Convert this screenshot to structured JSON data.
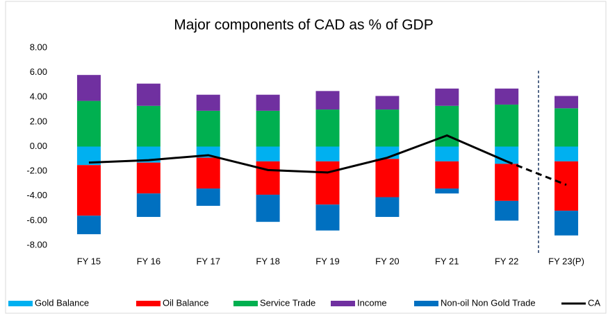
{
  "chart_data": {
    "type": "bar",
    "title": "Major components of CAD as % of GDP",
    "categories": [
      "FY 15",
      "FY 16",
      "FY 17",
      "FY 18",
      "FY 19",
      "FY 20",
      "FY 21",
      "FY 22",
      "FY 23(P)"
    ],
    "series": [
      {
        "name": "Gold Balance",
        "color": "#00b0f0",
        "values": [
          -1.5,
          -1.3,
          -0.9,
          -1.2,
          -1.2,
          -1.0,
          -1.2,
          -1.4,
          -1.2
        ]
      },
      {
        "name": "Oil Balance",
        "color": "#ff0000",
        "values": [
          -4.1,
          -2.5,
          -2.5,
          -2.7,
          -3.5,
          -3.1,
          -2.2,
          -3.0,
          -4.0
        ]
      },
      {
        "name": "Service Trade",
        "color": "#00b050",
        "values": [
          3.7,
          3.3,
          2.9,
          2.9,
          3.0,
          3.0,
          3.3,
          3.4,
          3.1
        ]
      },
      {
        "name": "Income",
        "color": "#7030a0",
        "values": [
          2.1,
          1.8,
          1.3,
          1.3,
          1.5,
          1.1,
          1.4,
          1.3,
          1.0
        ]
      },
      {
        "name": "Non-oil Non Gold Trade",
        "color": "#0070c0",
        "values": [
          -1.5,
          -1.9,
          -1.4,
          -2.2,
          -2.1,
          -1.6,
          -0.4,
          -1.6,
          -2.0
        ]
      },
      {
        "name": "CA",
        "color": "#000000",
        "type": "line",
        "values": [
          -1.3,
          -1.1,
          -0.7,
          -1.9,
          -2.1,
          -0.9,
          0.9,
          -1.2,
          -3.1
        ]
      }
    ],
    "ylim": [
      -8,
      8
    ],
    "yticks": [
      {
        "value": -8,
        "label": "-8.00"
      },
      {
        "value": -6,
        "label": "-6.00"
      },
      {
        "value": -4,
        "label": "-4.00"
      },
      {
        "value": -2,
        "label": "-2.00"
      },
      {
        "value": 0,
        "label": "0.00"
      },
      {
        "value": 2,
        "label": "2.00"
      },
      {
        "value": 4,
        "label": "4.00"
      },
      {
        "value": 6,
        "label": "6.00"
      },
      {
        "value": 8,
        "label": "8.00"
      }
    ],
    "legend": "bottom"
  }
}
